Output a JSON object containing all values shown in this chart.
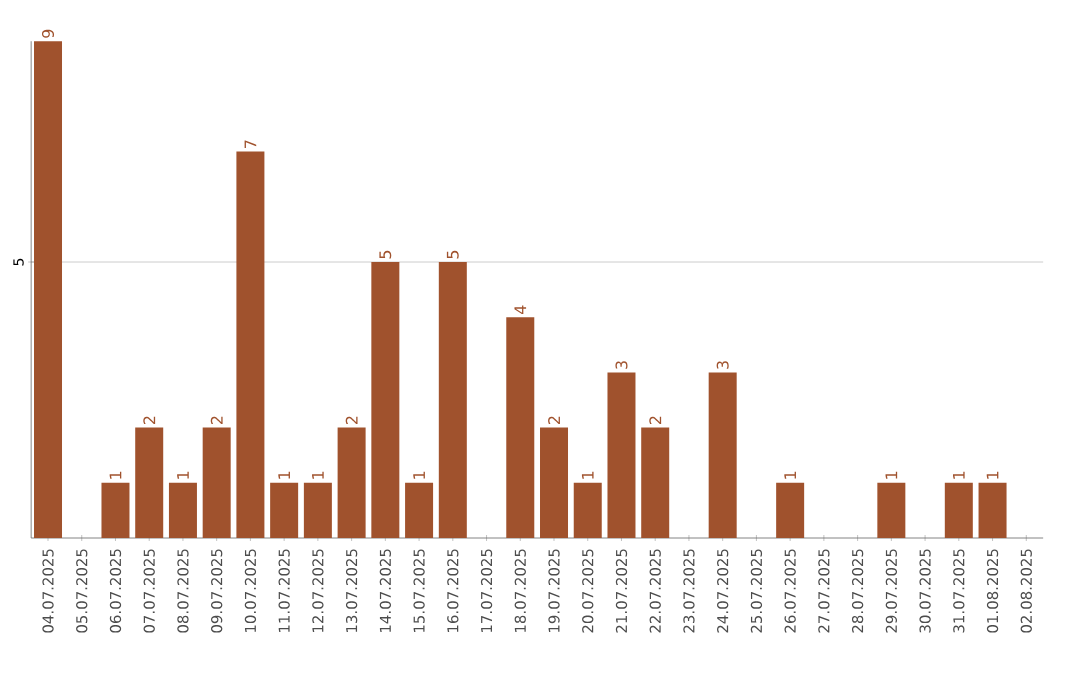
{
  "chart_data": {
    "type": "bar",
    "categories": [
      "04.07.2025",
      "05.07.2025",
      "06.07.2025",
      "07.07.2025",
      "08.07.2025",
      "09.07.2025",
      "10.07.2025",
      "11.07.2025",
      "12.07.2025",
      "13.07.2025",
      "14.07.2025",
      "15.07.2025",
      "16.07.2025",
      "17.07.2025",
      "18.07.2025",
      "19.07.2025",
      "20.07.2025",
      "21.07.2025",
      "22.07.2025",
      "23.07.2025",
      "24.07.2025",
      "25.07.2025",
      "26.07.2025",
      "27.07.2025",
      "28.07.2025",
      "29.07.2025",
      "30.07.2025",
      "31.07.2025",
      "01.08.2025",
      "02.08.2025"
    ],
    "values": [
      9,
      0,
      1,
      2,
      1,
      2,
      7,
      1,
      1,
      2,
      5,
      1,
      5,
      0,
      4,
      2,
      1,
      3,
      2,
      0,
      3,
      0,
      1,
      0,
      0,
      1,
      0,
      1,
      1,
      0
    ],
    "value_labels": [
      "9",
      null,
      "1",
      "2",
      "1",
      "2",
      "7",
      "1",
      "1",
      "2",
      "5",
      "1",
      "5",
      null,
      "4",
      "2",
      "1",
      "3",
      "2",
      null,
      "3",
      null,
      "1",
      null,
      null,
      "1",
      null,
      "1",
      "1",
      null
    ],
    "color": "#a0522d",
    "ylim": [
      0,
      9
    ],
    "yticks": [
      5
    ],
    "grid": "y"
  }
}
